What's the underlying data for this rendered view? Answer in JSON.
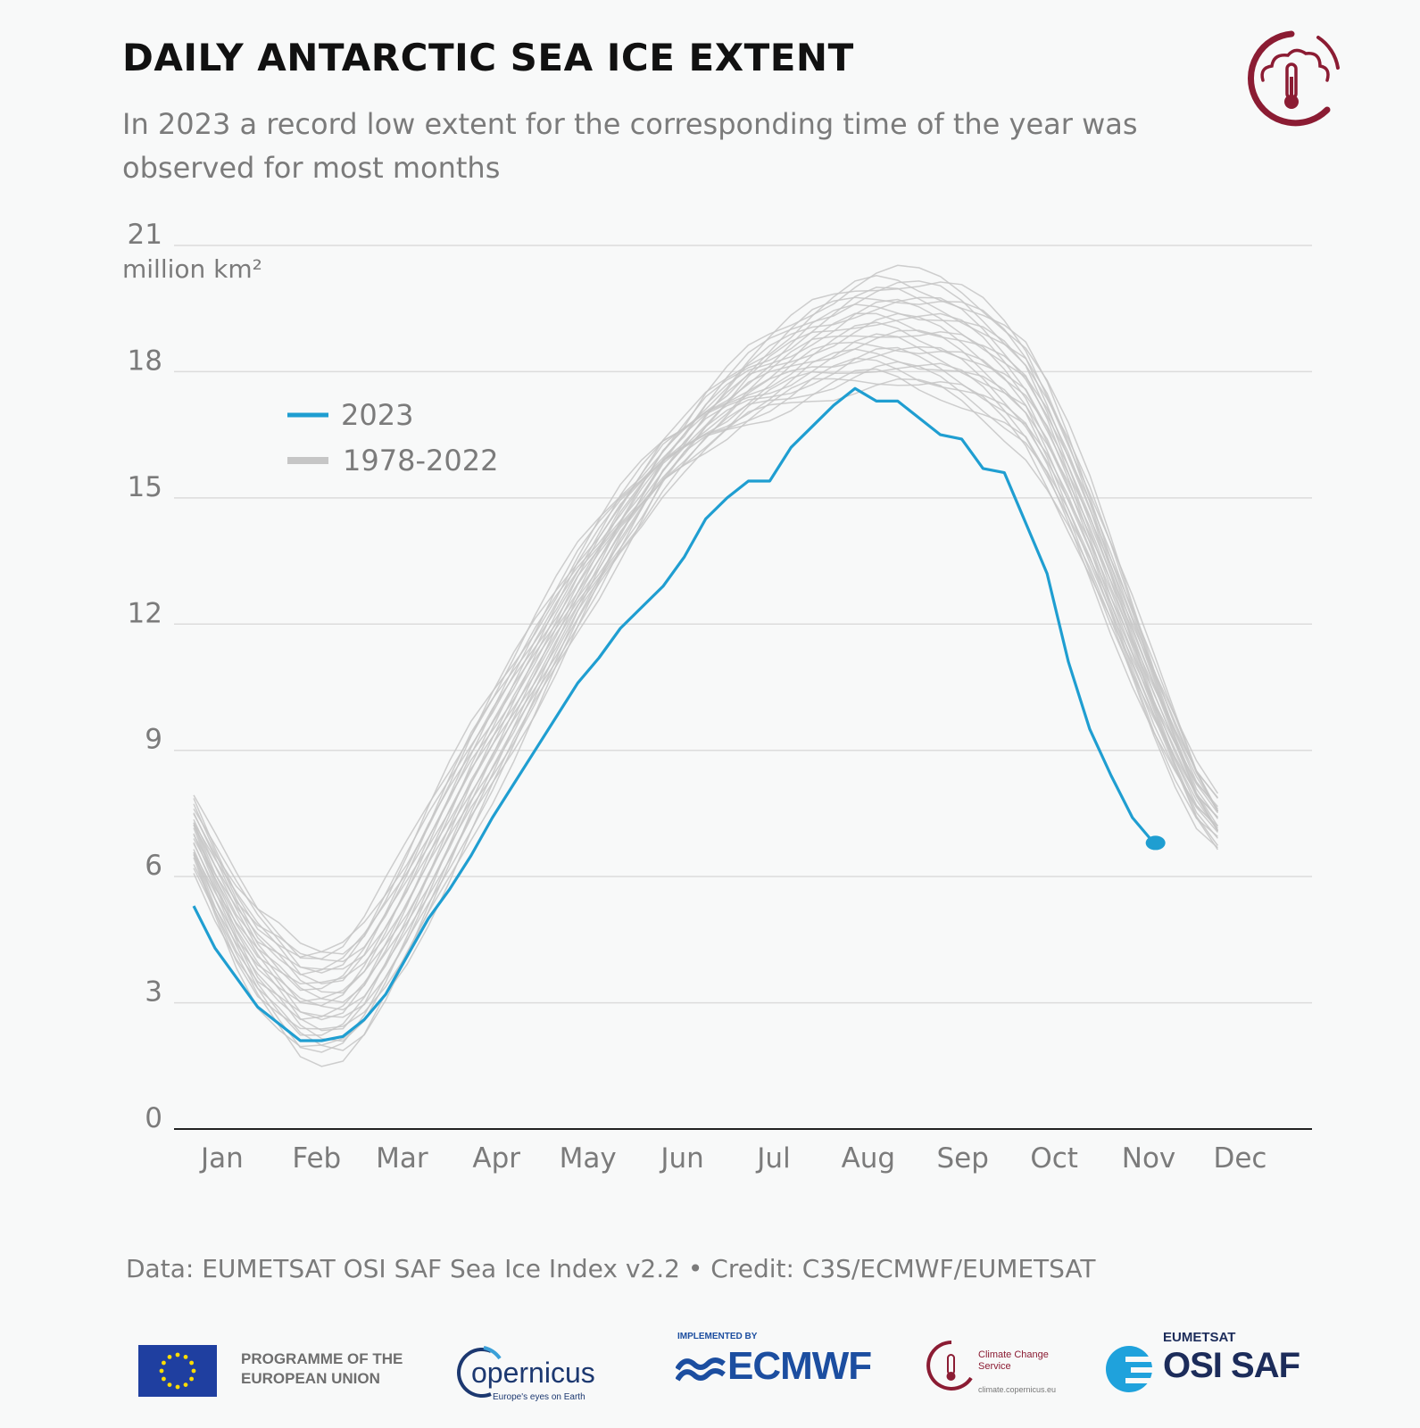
{
  "title": "DAILY ANTARCTIC SEA ICE EXTENT",
  "subtitle": "In 2023 a record low extent for the corresponding time of the year was observed for most months",
  "credit": "Data: EUMETSAT OSI SAF Sea Ice Index v2.2 • Credit: C3S/ECMWF/EUMETSAT",
  "colors": {
    "accent_2023": "#1f9ed1",
    "history": "#c6c6c6",
    "brand": "#8b1c33",
    "grid": "#dcdcdc"
  },
  "footer": {
    "eu_label": "PROGRAMME OF THE EUROPEAN UNION",
    "copernicus_name": "opernicus",
    "copernicus_tagline": "Europe's eyes on Earth",
    "ecmwf_implemented": "IMPLEMENTED BY",
    "ecmwf_name": "ECMWF",
    "c3s_name": "Climate Change Service",
    "c3s_url": "climate.copernicus.eu",
    "osisaf_top": "EUMETSAT",
    "osisaf_name": "OSI SAF"
  },
  "chart_data": {
    "type": "line",
    "title": "DAILY ANTARCTIC SEA ICE EXTENT",
    "subtitle": "In 2023 a record low extent for the corresponding time of the year was observed for most months",
    "ylabel": "million km²",
    "xlabel": "",
    "ylim": [
      0,
      21
    ],
    "yticks": [
      0,
      3,
      6,
      9,
      12,
      15,
      18,
      21
    ],
    "categories": [
      "Jan",
      "Feb",
      "Mar",
      "Apr",
      "May",
      "Jun",
      "Jul",
      "Aug",
      "Sep",
      "Oct",
      "Nov",
      "Dec"
    ],
    "grid": true,
    "legend_position": "upper-left",
    "series": [
      {
        "name": "2023",
        "color": "#1f9ed1",
        "x": [
          "2023-01-01",
          "2023-01-08",
          "2023-01-15",
          "2023-01-22",
          "2023-01-29",
          "2023-02-05",
          "2023-02-12",
          "2023-02-19",
          "2023-02-26",
          "2023-03-05",
          "2023-03-12",
          "2023-03-19",
          "2023-03-26",
          "2023-04-02",
          "2023-04-09",
          "2023-04-16",
          "2023-04-23",
          "2023-04-30",
          "2023-05-07",
          "2023-05-14",
          "2023-05-21",
          "2023-05-28",
          "2023-06-04",
          "2023-06-11",
          "2023-06-18",
          "2023-06-25",
          "2023-07-02",
          "2023-07-09",
          "2023-07-16",
          "2023-07-23",
          "2023-07-30",
          "2023-08-06",
          "2023-08-13",
          "2023-08-20",
          "2023-08-27",
          "2023-09-03",
          "2023-09-10",
          "2023-09-17",
          "2023-09-24",
          "2023-10-01",
          "2023-10-08",
          "2023-10-15",
          "2023-10-22",
          "2023-10-29",
          "2023-11-05",
          "2023-11-12",
          "2023-11-19",
          "2023-11-26",
          "2023-12-03",
          "2023-12-10"
        ],
        "values": [
          5.3,
          4.3,
          3.6,
          2.9,
          2.5,
          2.1,
          2.1,
          2.2,
          2.6,
          3.2,
          4.1,
          5.0,
          5.7,
          6.5,
          7.4,
          8.2,
          9.0,
          9.8,
          10.6,
          11.2,
          11.9,
          12.4,
          12.9,
          13.6,
          14.5,
          15.0,
          15.4,
          15.4,
          16.2,
          16.7,
          17.2,
          17.6,
          17.3,
          17.3,
          16.9,
          16.5,
          16.4,
          15.7,
          15.6,
          14.4,
          13.2,
          11.1,
          9.5,
          8.4,
          7.4,
          6.8,
          null,
          null,
          null,
          null
        ]
      },
      {
        "name": "1978-2022",
        "color": "#c6c6c6",
        "x": [
          "01-01",
          "01-08",
          "01-15",
          "01-22",
          "01-29",
          "02-05",
          "02-12",
          "02-19",
          "02-26",
          "03-05",
          "03-12",
          "03-19",
          "03-26",
          "04-02",
          "04-09",
          "04-16",
          "04-23",
          "04-30",
          "05-07",
          "05-14",
          "05-21",
          "05-28",
          "06-04",
          "06-11",
          "06-18",
          "06-25",
          "07-02",
          "07-09",
          "07-16",
          "07-23",
          "07-30",
          "08-06",
          "08-13",
          "08-20",
          "08-27",
          "09-03",
          "09-10",
          "09-17",
          "09-24",
          "10-01",
          "10-08",
          "10-15",
          "10-22",
          "10-29",
          "11-05",
          "11-12",
          "11-19",
          "11-26",
          "12-03",
          "12-10"
        ],
        "values": [
          7.0,
          5.9,
          4.9,
          4.1,
          3.6,
          3.1,
          3.0,
          3.1,
          3.6,
          4.4,
          5.3,
          6.3,
          7.3,
          8.3,
          9.2,
          10.1,
          11.0,
          11.9,
          12.8,
          13.6,
          14.4,
          15.1,
          15.8,
          16.3,
          16.8,
          17.2,
          17.6,
          17.9,
          18.2,
          18.5,
          18.7,
          18.9,
          19.0,
          19.0,
          18.9,
          18.8,
          18.6,
          18.3,
          17.9,
          17.4,
          16.5,
          15.4,
          14.2,
          12.9,
          11.6,
          10.3,
          9.1,
          8.0,
          7.3,
          null
        ]
      }
    ]
  }
}
